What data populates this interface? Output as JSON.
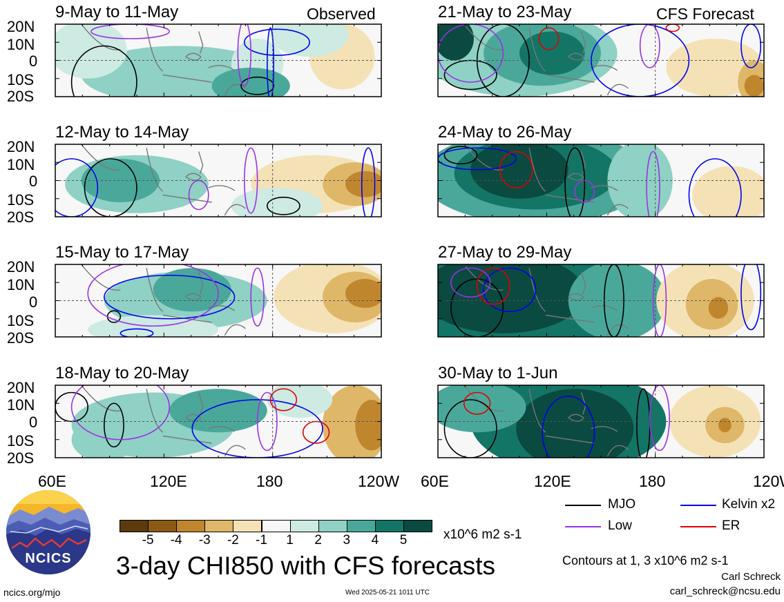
{
  "panels": [
    {
      "date": "9-May to 11-May",
      "tag": "Observed"
    },
    {
      "date": "12-May to 14-May",
      "tag": ""
    },
    {
      "date": "15-May to 17-May",
      "tag": ""
    },
    {
      "date": "18-May to 20-May",
      "tag": ""
    },
    {
      "date": "21-May to 23-May",
      "tag": "CFS Forecast"
    },
    {
      "date": "24-May to 26-May",
      "tag": ""
    },
    {
      "date": "27-May to 29-May",
      "tag": ""
    },
    {
      "date": "30-May to 1-Jun",
      "tag": ""
    }
  ],
  "lat_ticks": [
    "20N",
    "10N",
    "0",
    "10S",
    "20S"
  ],
  "lon_ticks": [
    "60E",
    "120E",
    "180",
    "120W"
  ],
  "legend": {
    "mjo": "MJO",
    "kelvin": "Kelvin x2",
    "low": "Low",
    "er": "ER",
    "colors": {
      "mjo": "#000000",
      "kelvin": "#0000ee",
      "low": "#9a32e6",
      "er": "#e00000"
    }
  },
  "colorbar": {
    "ticks": [
      "-5",
      "-4",
      "-3",
      "-2",
      "-1",
      "1",
      "2",
      "3",
      "4",
      "5"
    ],
    "colors": [
      "#5c3a0e",
      "#8c5a16",
      "#c0862e",
      "#dfb768",
      "#f4e2b6",
      "#f7f7f7",
      "#cdeae3",
      "#8fd1c4",
      "#4aa89a",
      "#137566",
      "#0a4a40"
    ],
    "units": "x10^6 m2 s-1"
  },
  "title": "3-day CHI850 with CFS forecasts",
  "contour_note": "Contours at 1, 3 x10^6 m2 s-1",
  "author": "Carl Schreck",
  "email": "carl_schreck@ncsu.edu",
  "website": "ncics.org/mjo",
  "timestamp": "Wed 2025-05-21 1011 UTC",
  "logo_text": "NCICS",
  "chart_data": {
    "type": "heatmap",
    "title": "3-day CHI850 with CFS forecasts",
    "xlabel": "",
    "ylabel": "",
    "xlim": [
      "60E",
      "120W"
    ],
    "ylim": [
      "20S",
      "20N"
    ],
    "color_levels": [
      -5,
      -4,
      -3,
      -2,
      -1,
      1,
      2,
      3,
      4,
      5
    ],
    "units": "x10^6 m2 s-1",
    "contour_levels": [
      1,
      3
    ],
    "series": [
      {
        "name": "MJO",
        "color": "#000000"
      },
      {
        "name": "Kelvin x2",
        "color": "#0000ee"
      },
      {
        "name": "Low",
        "color": "#9a32e6"
      },
      {
        "name": "ER",
        "color": "#e00000"
      }
    ],
    "grid": false
  }
}
